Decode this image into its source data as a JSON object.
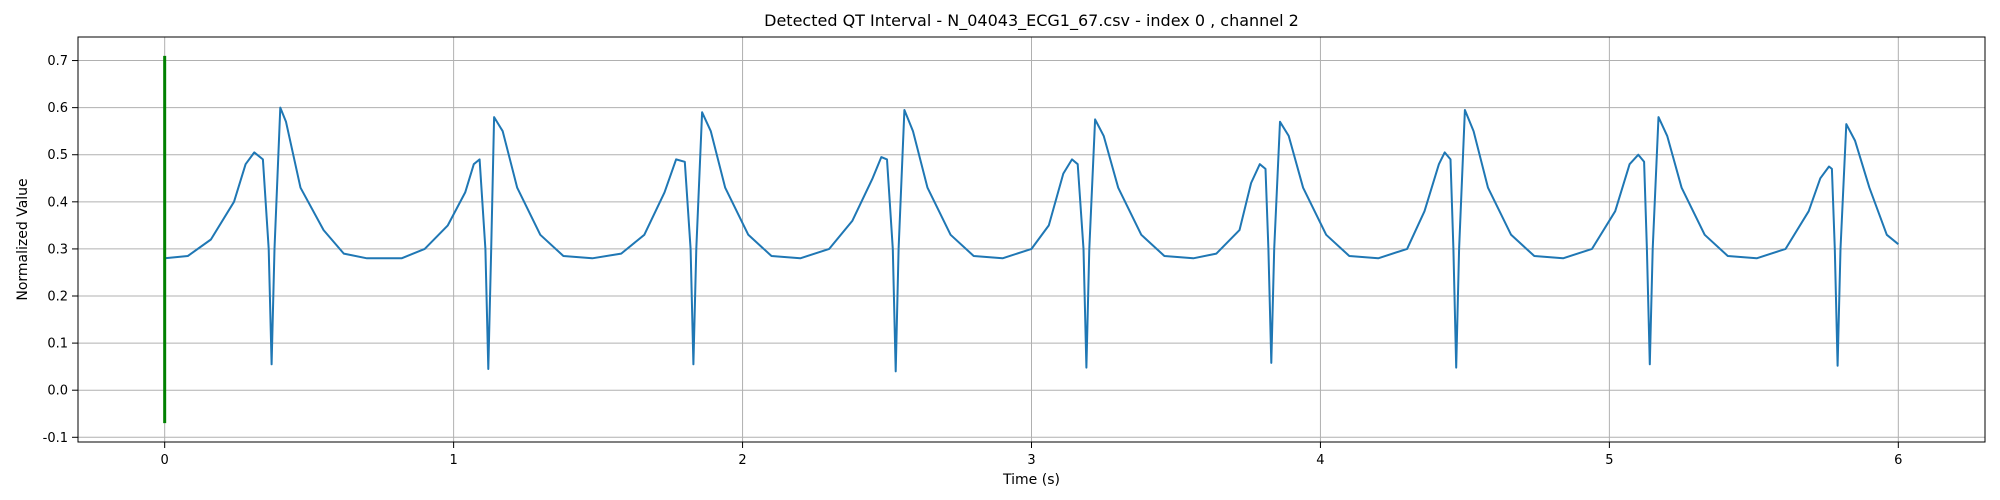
{
  "chart_data": {
    "type": "line",
    "title": "Detected QT Interval - N_04043_ECG1_67.csv - index 0 , channel 2",
    "xlabel": "Time (s)",
    "ylabel": "Normalized Value",
    "xlim": [
      -0.3,
      6.3
    ],
    "ylim": [
      -0.11,
      0.75
    ],
    "xticks": [
      0,
      1,
      2,
      3,
      4,
      5,
      6
    ],
    "yticks": [
      -0.1,
      0.0,
      0.1,
      0.2,
      0.3,
      0.4,
      0.5,
      0.6,
      0.7
    ],
    "grid": true,
    "series": [
      {
        "color": "#1f77b4",
        "keypoints": [
          [
            0.0,
            0.28
          ],
          [
            0.08,
            0.285
          ],
          [
            0.16,
            0.32
          ],
          [
            0.24,
            0.4
          ],
          [
            0.28,
            0.48
          ],
          [
            0.31,
            0.505
          ],
          [
            0.34,
            0.49
          ],
          [
            0.36,
            0.3
          ],
          [
            0.37,
            0.055
          ],
          [
            0.38,
            0.3
          ],
          [
            0.4,
            0.6
          ],
          [
            0.42,
            0.57
          ],
          [
            0.47,
            0.43
          ],
          [
            0.55,
            0.34
          ],
          [
            0.62,
            0.29
          ],
          [
            0.7,
            0.28
          ],
          [
            0.82,
            0.28
          ],
          [
            0.9,
            0.3
          ],
          [
            0.98,
            0.35
          ],
          [
            1.04,
            0.42
          ],
          [
            1.07,
            0.48
          ],
          [
            1.09,
            0.49
          ],
          [
            1.11,
            0.3
          ],
          [
            1.12,
            0.045
          ],
          [
            1.13,
            0.3
          ],
          [
            1.14,
            0.58
          ],
          [
            1.17,
            0.55
          ],
          [
            1.22,
            0.43
          ],
          [
            1.3,
            0.33
          ],
          [
            1.38,
            0.285
          ],
          [
            1.48,
            0.28
          ],
          [
            1.58,
            0.29
          ],
          [
            1.66,
            0.33
          ],
          [
            1.73,
            0.42
          ],
          [
            1.77,
            0.49
          ],
          [
            1.8,
            0.485
          ],
          [
            1.82,
            0.3
          ],
          [
            1.83,
            0.055
          ],
          [
            1.84,
            0.3
          ],
          [
            1.86,
            0.59
          ],
          [
            1.89,
            0.55
          ],
          [
            1.94,
            0.43
          ],
          [
            2.02,
            0.33
          ],
          [
            2.1,
            0.285
          ],
          [
            2.2,
            0.28
          ],
          [
            2.3,
            0.3
          ],
          [
            2.38,
            0.36
          ],
          [
            2.45,
            0.45
          ],
          [
            2.48,
            0.495
          ],
          [
            2.5,
            0.49
          ],
          [
            2.52,
            0.3
          ],
          [
            2.53,
            0.04
          ],
          [
            2.54,
            0.3
          ],
          [
            2.56,
            0.595
          ],
          [
            2.59,
            0.55
          ],
          [
            2.64,
            0.43
          ],
          [
            2.72,
            0.33
          ],
          [
            2.8,
            0.285
          ],
          [
            2.9,
            0.28
          ],
          [
            3.0,
            0.3
          ],
          [
            3.06,
            0.35
          ],
          [
            3.11,
            0.46
          ],
          [
            3.14,
            0.49
          ],
          [
            3.16,
            0.48
          ],
          [
            3.18,
            0.3
          ],
          [
            3.19,
            0.048
          ],
          [
            3.2,
            0.3
          ],
          [
            3.22,
            0.575
          ],
          [
            3.25,
            0.54
          ],
          [
            3.3,
            0.43
          ],
          [
            3.38,
            0.33
          ],
          [
            3.46,
            0.285
          ],
          [
            3.56,
            0.28
          ],
          [
            3.64,
            0.29
          ],
          [
            3.72,
            0.34
          ],
          [
            3.76,
            0.44
          ],
          [
            3.79,
            0.48
          ],
          [
            3.81,
            0.47
          ],
          [
            3.82,
            0.3
          ],
          [
            3.83,
            0.058
          ],
          [
            3.84,
            0.3
          ],
          [
            3.86,
            0.57
          ],
          [
            3.89,
            0.54
          ],
          [
            3.94,
            0.43
          ],
          [
            4.02,
            0.33
          ],
          [
            4.1,
            0.285
          ],
          [
            4.2,
            0.28
          ],
          [
            4.3,
            0.3
          ],
          [
            4.36,
            0.38
          ],
          [
            4.41,
            0.48
          ],
          [
            4.43,
            0.505
          ],
          [
            4.45,
            0.49
          ],
          [
            4.46,
            0.3
          ],
          [
            4.47,
            0.048
          ],
          [
            4.48,
            0.3
          ],
          [
            4.5,
            0.595
          ],
          [
            4.53,
            0.55
          ],
          [
            4.58,
            0.43
          ],
          [
            4.66,
            0.33
          ],
          [
            4.74,
            0.285
          ],
          [
            4.84,
            0.28
          ],
          [
            4.94,
            0.3
          ],
          [
            5.02,
            0.38
          ],
          [
            5.07,
            0.48
          ],
          [
            5.1,
            0.5
          ],
          [
            5.12,
            0.485
          ],
          [
            5.13,
            0.3
          ],
          [
            5.14,
            0.055
          ],
          [
            5.15,
            0.3
          ],
          [
            5.17,
            0.58
          ],
          [
            5.2,
            0.54
          ],
          [
            5.25,
            0.43
          ],
          [
            5.33,
            0.33
          ],
          [
            5.41,
            0.285
          ],
          [
            5.51,
            0.28
          ],
          [
            5.61,
            0.3
          ],
          [
            5.69,
            0.38
          ],
          [
            5.73,
            0.45
          ],
          [
            5.76,
            0.475
          ],
          [
            5.77,
            0.47
          ],
          [
            5.78,
            0.3
          ],
          [
            5.79,
            0.052
          ],
          [
            5.8,
            0.3
          ],
          [
            5.82,
            0.565
          ],
          [
            5.85,
            0.53
          ],
          [
            5.9,
            0.43
          ],
          [
            5.96,
            0.33
          ],
          [
            6.0,
            0.31
          ]
        ]
      },
      {
        "color": "#008000",
        "type": "vertical-line",
        "x": 0.0,
        "y_range": [
          -0.07,
          0.71
        ]
      }
    ]
  }
}
